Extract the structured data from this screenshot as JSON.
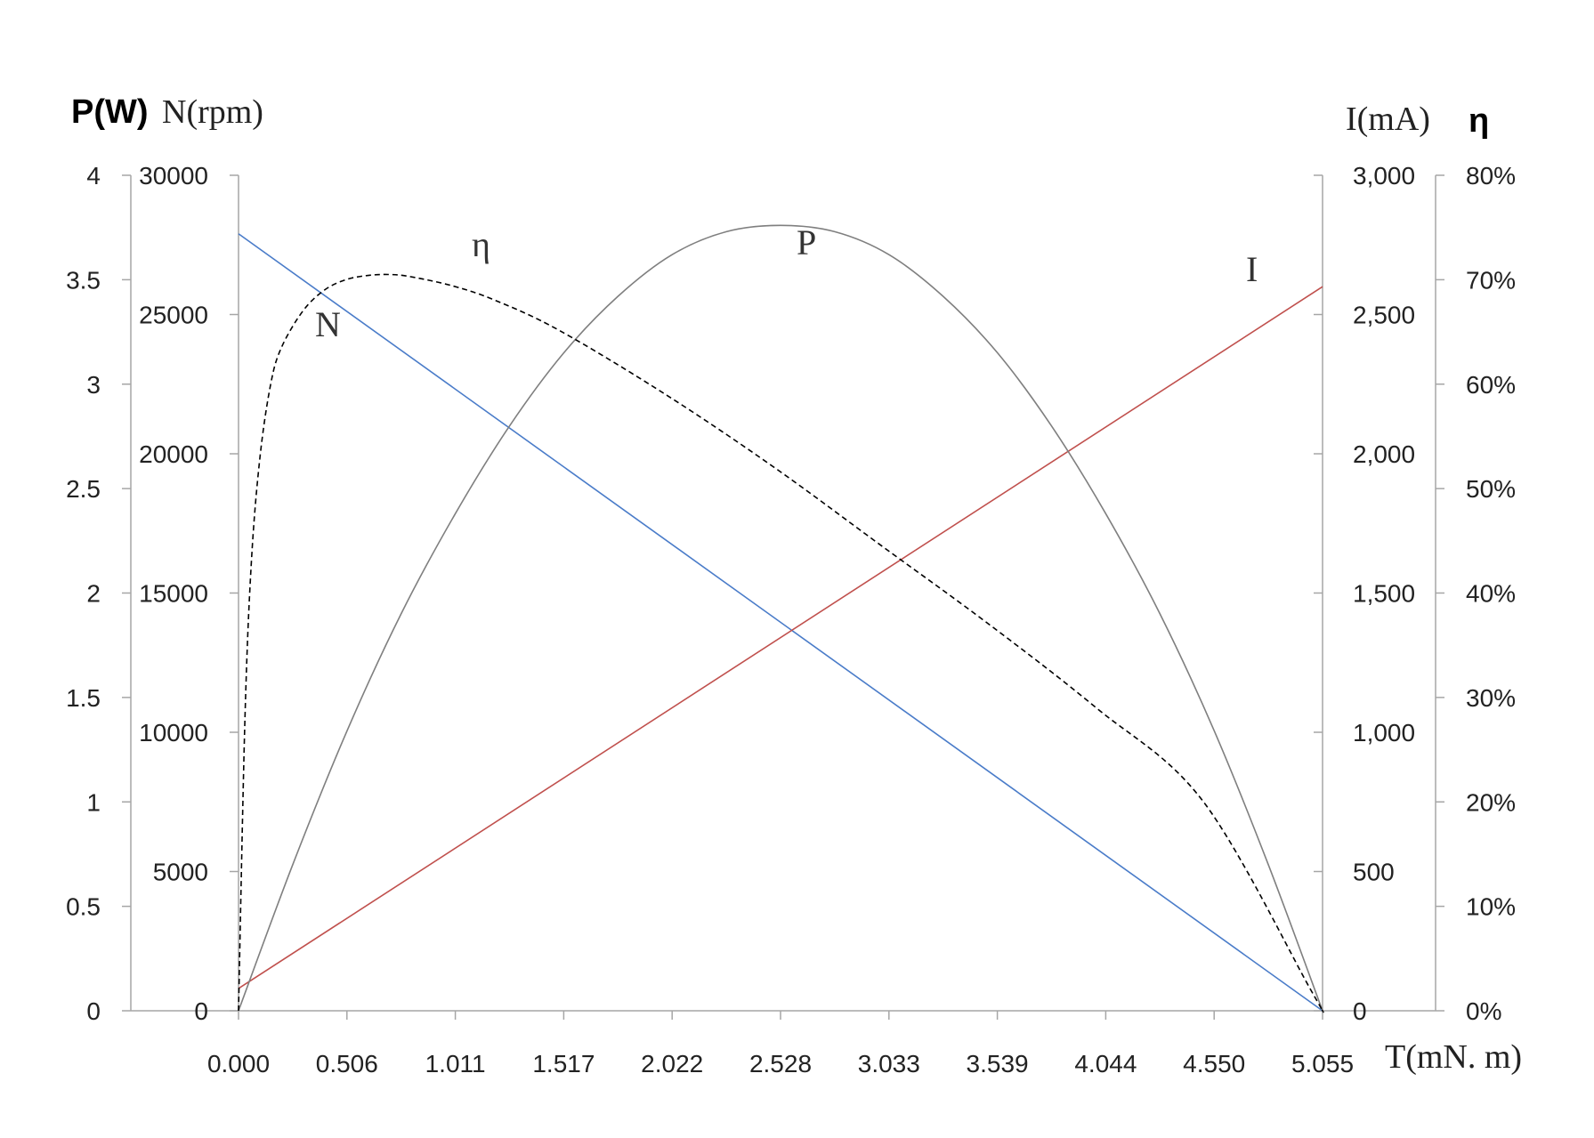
{
  "chart_data": {
    "type": "line",
    "x_axis": {
      "label": "T(mN. m)",
      "range": [
        0,
        5.055
      ],
      "ticks": [
        "0.000",
        "0.506",
        "1.011",
        "1.517",
        "2.022",
        "2.528",
        "3.033",
        "3.539",
        "4.044",
        "4.550",
        "5.055"
      ]
    },
    "y_axes": {
      "power": {
        "range": [
          0,
          4
        ],
        "ticks": [
          "0",
          "0.5",
          "1",
          "1.5",
          "2",
          "2.5",
          "3",
          "3.5",
          "4"
        ]
      },
      "speed": {
        "range": [
          0,
          30000
        ],
        "ticks": [
          "0",
          "5000",
          "10000",
          "15000",
          "20000",
          "25000",
          "30000"
        ]
      },
      "combined_label_power": "P(W)",
      "combined_label_speed": "N(rpm)",
      "current": {
        "label": "I(mA)",
        "range": [
          0,
          3000
        ],
        "ticks": [
          "0",
          "500",
          "1,000",
          "1,500",
          "2,000",
          "2,500",
          "3,000"
        ]
      },
      "efficiency": {
        "label": "η",
        "range": [
          0,
          0.8
        ],
        "ticks": [
          "0%",
          "10%",
          "20%",
          "30%",
          "40%",
          "50%",
          "60%",
          "70%",
          "80%"
        ]
      }
    },
    "series": [
      {
        "name": "N",
        "axis": "speed",
        "color": "#4a7cc9",
        "style": "solid",
        "x": [
          0,
          5.055
        ],
        "y": [
          27900,
          0
        ]
      },
      {
        "name": "I",
        "axis": "current",
        "color": "#c0504d",
        "style": "solid",
        "x": [
          0,
          5.055
        ],
        "y": [
          80,
          2600
        ]
      },
      {
        "name": "P",
        "axis": "power",
        "color": "#7f7f7f",
        "style": "solid",
        "x": [
          0,
          0.253,
          0.506,
          0.758,
          1.011,
          1.264,
          1.517,
          1.769,
          2.022,
          2.275,
          2.528,
          2.78,
          3.033,
          3.286,
          3.539,
          3.791,
          4.044,
          4.297,
          4.55,
          4.802,
          5.055
        ],
        "y": [
          0,
          0.7,
          1.34,
          1.9,
          2.38,
          2.8,
          3.15,
          3.42,
          3.62,
          3.73,
          3.76,
          3.73,
          3.62,
          3.42,
          3.15,
          2.8,
          2.38,
          1.9,
          1.34,
          0.7,
          0
        ]
      },
      {
        "name": "η",
        "axis": "efficiency",
        "color": "#000000",
        "style": "dashed",
        "x": [
          0,
          0.03,
          0.06,
          0.1,
          0.15,
          0.2,
          0.3,
          0.4,
          0.5,
          0.6,
          0.7,
          0.8,
          1.0,
          1.2,
          1.5,
          2.0,
          2.5,
          3.0,
          3.5,
          4.0,
          4.5,
          5.0,
          5.055
        ],
        "y": [
          0,
          0.28,
          0.43,
          0.53,
          0.6,
          0.635,
          0.67,
          0.69,
          0.7,
          0.704,
          0.705,
          0.703,
          0.694,
          0.68,
          0.651,
          0.589,
          0.52,
          0.445,
          0.37,
          0.29,
          0.2,
          0.02,
          0
        ]
      }
    ],
    "annotations": {
      "eta_label": "η",
      "p_label": "P",
      "i_label": "I",
      "n_label": "N"
    },
    "grid": false,
    "legend": "none"
  }
}
